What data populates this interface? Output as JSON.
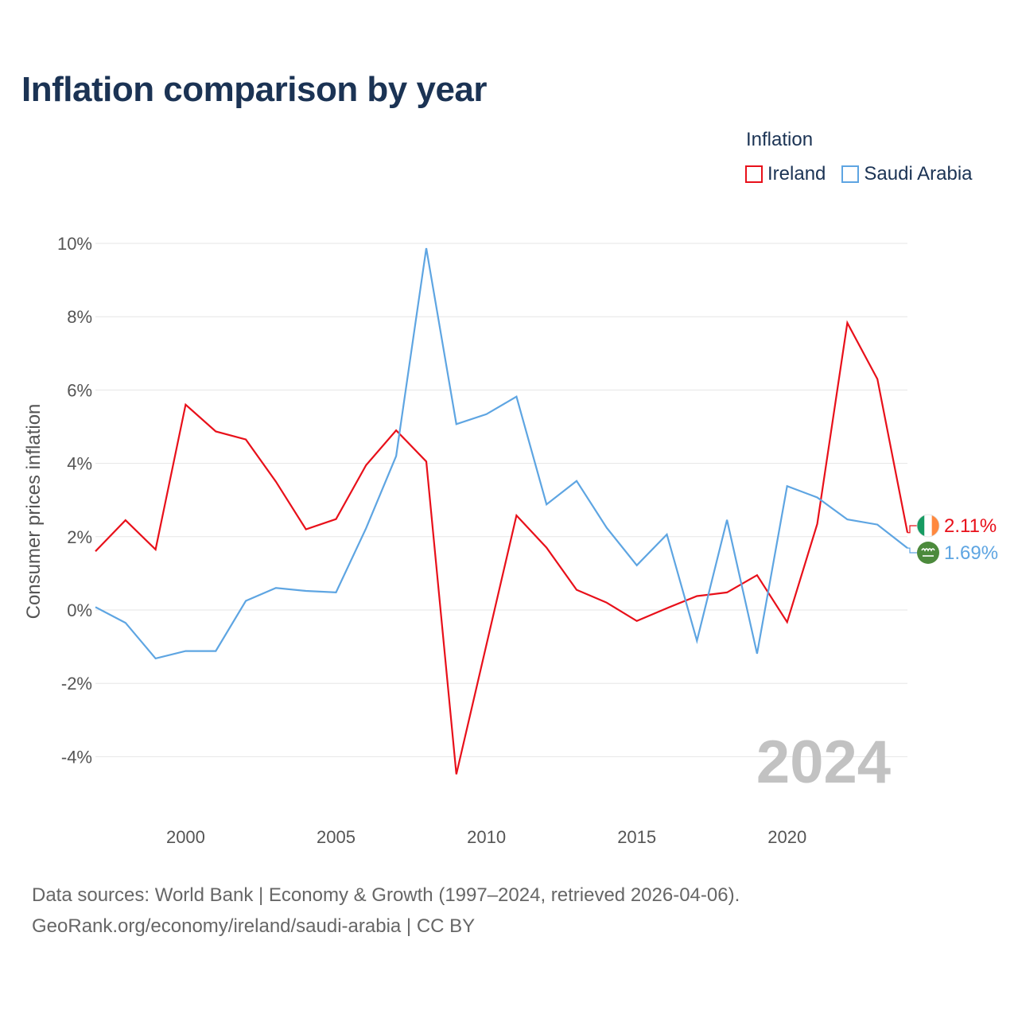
{
  "colors": {
    "title": "#1b3354",
    "ireland": "#e8101a",
    "saudi_arabia": "#5ea5e2",
    "grid": "#e6e6e6",
    "tick_text": "#555555",
    "watermark": "#c2c2c2"
  },
  "chart_data": {
    "type": "line",
    "title": "Inflation comparison by year",
    "legend_title": "Inflation",
    "legend_position": "top-right",
    "xlabel": "",
    "ylabel": "Consumer prices inflation",
    "xlim": [
      1997,
      2024
    ],
    "ylim": [
      -5.5,
      10.5
    ],
    "grid": true,
    "x_ticks": [
      2000,
      2005,
      2010,
      2015,
      2020
    ],
    "x_tick_labels": [
      "2000",
      "2005",
      "2010",
      "2015",
      "2020"
    ],
    "y_ticks": [
      -4,
      -2,
      0,
      2,
      4,
      6,
      8,
      10
    ],
    "y_tick_labels": [
      "-4%",
      "-2%",
      "0%",
      "2%",
      "4%",
      "6%",
      "8%",
      "10%"
    ],
    "x": [
      1997,
      1998,
      1999,
      2000,
      2001,
      2002,
      2003,
      2004,
      2005,
      2006,
      2007,
      2008,
      2009,
      2010,
      2011,
      2012,
      2013,
      2014,
      2015,
      2016,
      2017,
      2018,
      2019,
      2020,
      2021,
      2022,
      2023,
      2024
    ],
    "series": [
      {
        "name": "Ireland",
        "color": "#e8101a",
        "values": [
          1.6,
          2.45,
          1.65,
          5.6,
          4.87,
          4.65,
          3.5,
          2.2,
          2.48,
          3.95,
          4.9,
          4.05,
          -4.48,
          -0.95,
          2.58,
          1.7,
          0.55,
          0.2,
          -0.3,
          0.05,
          0.38,
          0.48,
          0.95,
          -0.33,
          2.35,
          7.83,
          6.3,
          2.11
        ],
        "end_label": "2.11%",
        "end_icon": "ireland-flag-icon"
      },
      {
        "name": "Saudi Arabia",
        "color": "#5ea5e2",
        "values": [
          0.08,
          -0.35,
          -1.32,
          -1.12,
          -1.12,
          0.25,
          0.6,
          0.52,
          0.48,
          2.23,
          4.2,
          9.87,
          5.07,
          5.34,
          5.82,
          2.88,
          3.52,
          2.24,
          1.22,
          2.06,
          -0.84,
          2.46,
          -1.19,
          3.38,
          3.07,
          2.47,
          2.33,
          1.69
        ],
        "end_label": "1.69%",
        "end_icon": "saudi-arabia-flag-icon"
      }
    ],
    "annotation": "2024"
  },
  "footer": {
    "line1": "Data sources: World Bank | Economy & Growth (1997–2024, retrieved 2026-04-06).",
    "line2": "GeoRank.org/economy/ireland/saudi-arabia | CC BY"
  }
}
